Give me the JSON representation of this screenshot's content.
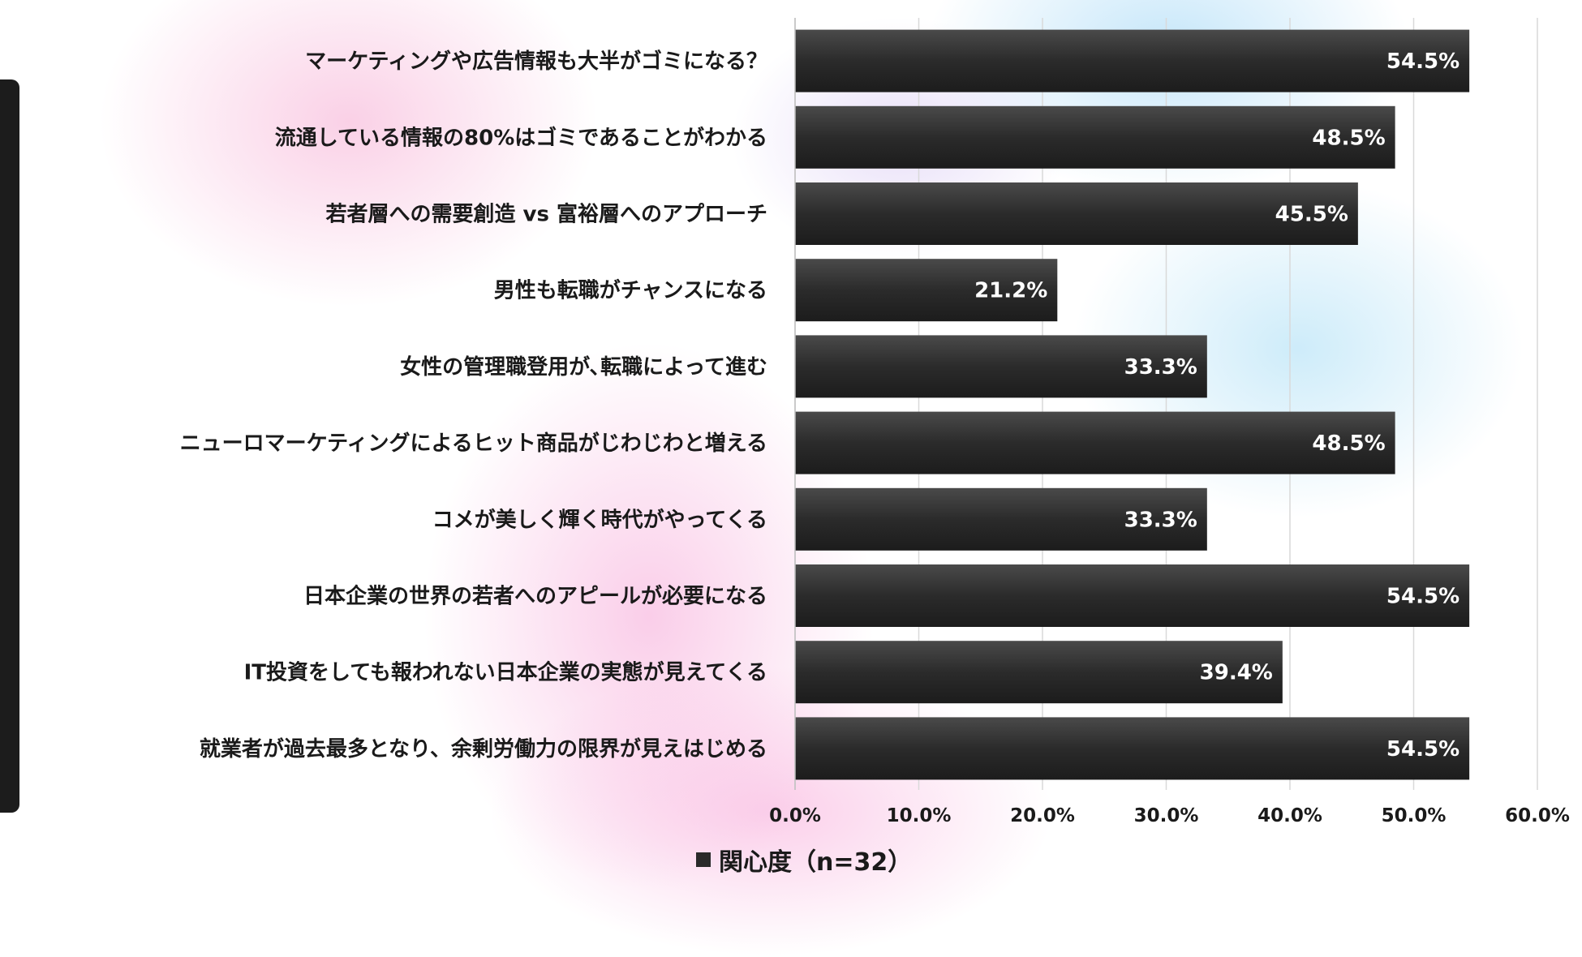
{
  "chart_data": {
    "type": "bar",
    "orientation": "horizontal",
    "categories": [
      "マーケティングや広告情報も大半がゴミになる？",
      "流通している情報の80%はゴミであることがわかる",
      "若者層への需要創造 vs 富裕層へのアプローチ",
      "男性も転職がチャンスになる",
      "女性の管理職登用が､転職によって進む",
      "ニューロマーケティングによるヒット商品がじわじわと増える",
      "コメが美しく輝く時代がやってくる",
      "日本企業の世界の若者へのアピールが必要になる",
      "IT投資をしても報われない日本企業の実態が見えてくる",
      "就業者が過去最多となり、余剰労働力の限界が見えはじめる"
    ],
    "series": [
      {
        "name": "関心度（n=32）",
        "values": [
          54.5,
          48.5,
          45.5,
          21.2,
          33.3,
          48.5,
          33.3,
          54.5,
          39.4,
          54.5
        ],
        "labels": [
          "54.5%",
          "48.5%",
          "45.5%",
          "21.2%",
          "33.3%",
          "48.5%",
          "33.3%",
          "54.5%",
          "39.4%",
          "54.5%"
        ]
      }
    ],
    "xlim": [
      0,
      60
    ],
    "xticks": [
      "0.0%",
      "10.0%",
      "20.0%",
      "30.0%",
      "40.0%",
      "50.0%",
      "60.0%"
    ],
    "grid": true,
    "legend_position": "bottom",
    "colors": {
      "bar": "#2b2b2b",
      "grid": "#d9d9d9",
      "label": "#ffffff"
    }
  }
}
